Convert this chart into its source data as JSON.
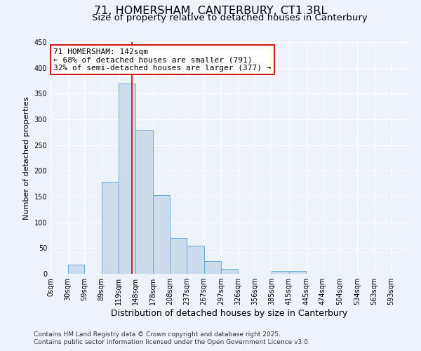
{
  "title": "71, HOMERSHAM, CANTERBURY, CT1 3RL",
  "subtitle": "Size of property relative to detached houses in Canterbury",
  "xlabel": "Distribution of detached houses by size in Canterbury",
  "ylabel": "Number of detached properties",
  "bin_labels": [
    "0sqm",
    "30sqm",
    "59sqm",
    "89sqm",
    "119sqm",
    "148sqm",
    "178sqm",
    "208sqm",
    "237sqm",
    "267sqm",
    "297sqm",
    "326sqm",
    "356sqm",
    "385sqm",
    "415sqm",
    "445sqm",
    "474sqm",
    "504sqm",
    "534sqm",
    "563sqm",
    "593sqm"
  ],
  "bin_edges": [
    0,
    30,
    59,
    89,
    119,
    148,
    178,
    208,
    237,
    267,
    297,
    326,
    356,
    385,
    415,
    445,
    474,
    504,
    534,
    563,
    593
  ],
  "bin_widths": [
    30,
    29,
    30,
    30,
    29,
    30,
    30,
    29,
    30,
    30,
    29,
    30,
    29,
    30,
    30,
    29,
    30,
    30,
    29,
    30,
    30
  ],
  "bar_heights": [
    0,
    18,
    0,
    178,
    370,
    280,
    153,
    70,
    55,
    25,
    9,
    0,
    0,
    6,
    6,
    0,
    0,
    0,
    0,
    0,
    0
  ],
  "bar_color": "#ccdcec",
  "bar_edge_color": "#6aaad4",
  "vline_x": 142,
  "vline_color": "#cc0000",
  "annotation_title": "71 HOMERSHAM: 142sqm",
  "annotation_line1": "← 68% of detached houses are smaller (791)",
  "annotation_line2": "32% of semi-detached houses are larger (377) →",
  "annotation_box_facecolor": "#ffffff",
  "annotation_box_edgecolor": "#cc0000",
  "ylim": [
    0,
    450
  ],
  "xlim": [
    0,
    623
  ],
  "footnote1": "Contains HM Land Registry data © Crown copyright and database right 2025.",
  "footnote2": "Contains public sector information licensed under the Open Government Licence v3.0.",
  "background_color": "#eef2fb",
  "grid_color": "#ffffff",
  "title_fontsize": 11.5,
  "subtitle_fontsize": 9.5,
  "xlabel_fontsize": 9,
  "ylabel_fontsize": 8,
  "tick_fontsize": 7,
  "annotation_fontsize": 8,
  "footnote_fontsize": 6.5
}
